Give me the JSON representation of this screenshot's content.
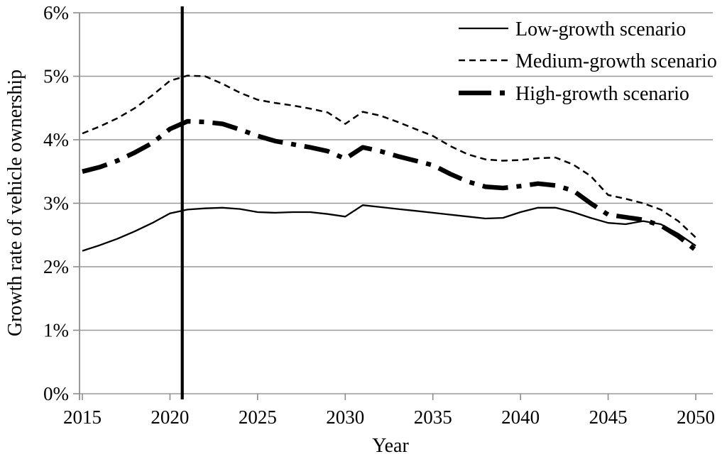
{
  "chart_data": {
    "type": "line",
    "title": "",
    "xlabel": "Year",
    "ylabel": "Growth rate of vehicle ownership",
    "xlim": [
      2015,
      2050
    ],
    "ylim": [
      0,
      6
    ],
    "x_ticks": [
      2015,
      2020,
      2025,
      2030,
      2035,
      2040,
      2045,
      2050
    ],
    "y_ticks": [
      "0%",
      "1%",
      "2%",
      "3%",
      "4%",
      "5%",
      "6%"
    ],
    "grid": "horizontal",
    "legend_position": "top-right",
    "marker_line": {
      "x": 2020.7,
      "label": "vertical divider between observed and projected years"
    },
    "x": [
      2015,
      2016,
      2017,
      2018,
      2019,
      2020,
      2021,
      2022,
      2023,
      2024,
      2025,
      2026,
      2027,
      2028,
      2029,
      2030,
      2031,
      2032,
      2033,
      2034,
      2035,
      2036,
      2037,
      2038,
      2039,
      2040,
      2041,
      2042,
      2043,
      2044,
      2045,
      2046,
      2047,
      2048,
      2049,
      2050
    ],
    "series": [
      {
        "name": "Low-growth scenario",
        "style": "solid-thin",
        "values": [
          2.25,
          2.34,
          2.44,
          2.56,
          2.69,
          2.84,
          2.9,
          2.92,
          2.93,
          2.91,
          2.86,
          2.85,
          2.86,
          2.86,
          2.83,
          2.79,
          2.97,
          2.94,
          2.91,
          2.88,
          2.85,
          2.82,
          2.79,
          2.76,
          2.77,
          2.86,
          2.93,
          2.93,
          2.86,
          2.77,
          2.69,
          2.67,
          2.72,
          2.67,
          2.52,
          2.33
        ]
      },
      {
        "name": "Medium-growth scenario",
        "style": "dashed",
        "values": [
          4.1,
          4.21,
          4.34,
          4.5,
          4.7,
          4.93,
          5.01,
          5.0,
          4.88,
          4.74,
          4.63,
          4.58,
          4.54,
          4.49,
          4.43,
          4.25,
          4.44,
          4.38,
          4.28,
          4.17,
          4.06,
          3.9,
          3.77,
          3.69,
          3.67,
          3.68,
          3.71,
          3.72,
          3.61,
          3.43,
          3.13,
          3.07,
          3.0,
          2.9,
          2.72,
          2.46
        ]
      },
      {
        "name": "High-growth scenario",
        "style": "dashdot-thick",
        "values": [
          3.5,
          3.57,
          3.67,
          3.8,
          3.95,
          4.17,
          4.29,
          4.28,
          4.25,
          4.16,
          4.06,
          3.98,
          3.93,
          3.88,
          3.82,
          3.7,
          3.88,
          3.82,
          3.74,
          3.67,
          3.6,
          3.46,
          3.34,
          3.26,
          3.24,
          3.27,
          3.31,
          3.28,
          3.2,
          3.0,
          2.82,
          2.78,
          2.74,
          2.65,
          2.48,
          2.26
        ]
      }
    ]
  },
  "colors": {
    "line": "#000000",
    "grid": "#999999",
    "axis": "#8c8c8c",
    "text": "#000000",
    "background": "#ffffff",
    "marker_line": "#000000"
  }
}
